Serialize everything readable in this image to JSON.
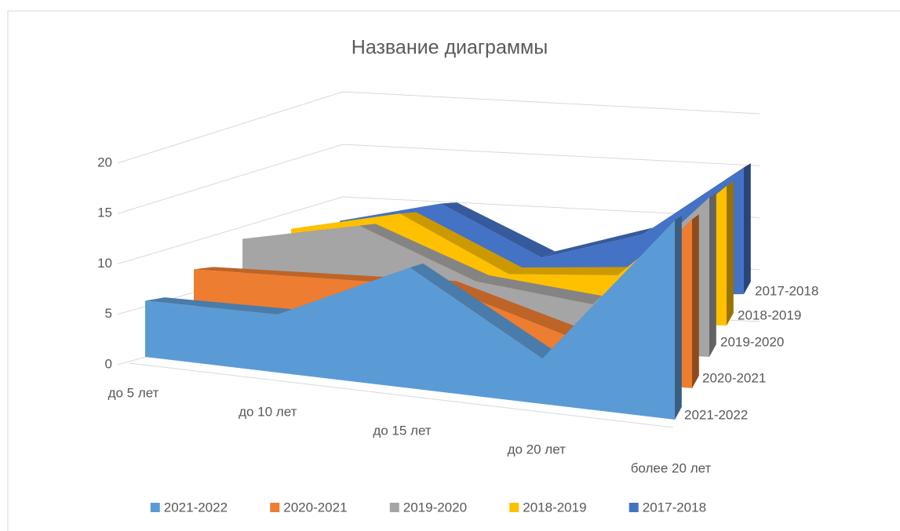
{
  "chart_data": {
    "type": "area",
    "title": "Название диаграммы",
    "categories": [
      "до 5 лет",
      "до 10 лет",
      "до 15 лет",
      "до 20 лет",
      "более 20 лет"
    ],
    "series": [
      {
        "name": "2021-2022",
        "color": "#5b9bd5",
        "values": [
          5.5,
          5.5,
          11,
          4,
          17
        ]
      },
      {
        "name": "2020-2021",
        "color": "#ed7d31",
        "values": [
          8,
          8,
          8,
          4,
          16
        ]
      },
      {
        "name": "2019-2020",
        "color": "#a5a5a5",
        "values": [
          11,
          13,
          7,
          5,
          17
        ]
      },
      {
        "name": "2018-2019",
        "color": "#ffc000",
        "values": [
          12,
          14,
          6,
          6,
          17
        ]
      },
      {
        "name": "2017-2018",
        "color": "#4472c4",
        "values": [
          13,
          15,
          6,
          9,
          18
        ]
      }
    ],
    "ylim": [
      0,
      20
    ],
    "yticks": [
      0,
      5,
      10,
      15,
      20
    ],
    "grid": true,
    "legend": "bottom"
  }
}
